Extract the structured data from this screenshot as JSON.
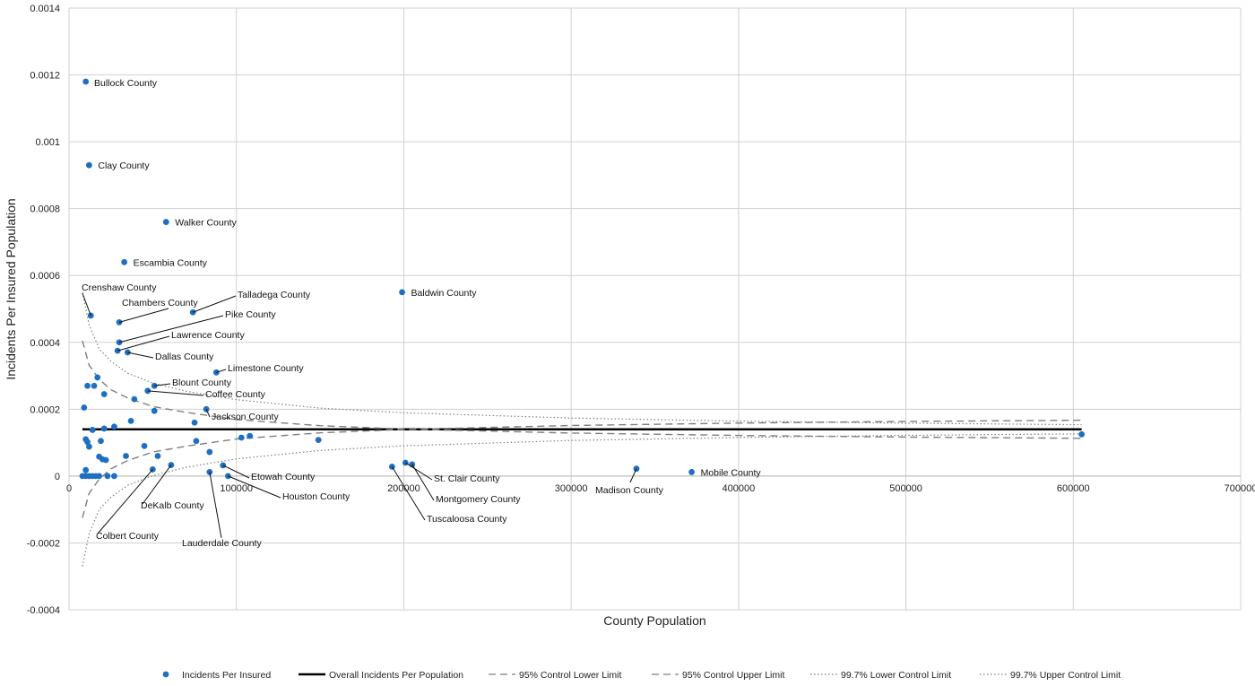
{
  "chart_data": {
    "type": "scatter",
    "xlabel": "County Population",
    "ylabel": "Incidents Per Insured Population",
    "xlim": [
      0,
      700000
    ],
    "ylim": [
      -0.0004,
      0.0014
    ],
    "x_ticks": [
      0,
      100000,
      200000,
      300000,
      400000,
      500000,
      600000,
      700000
    ],
    "x_tick_labels": [
      "0",
      "100000",
      "200000",
      "300000",
      "400000",
      "500000",
      "600000",
      "700000"
    ],
    "y_ticks": [
      -0.0004,
      -0.0002,
      0,
      0.0002,
      0.0004,
      0.0006,
      0.0008,
      0.001,
      0.0012,
      0.0014
    ],
    "y_tick_labels": [
      "-0.0004",
      "-0.0002",
      "0",
      "0.0002",
      "0.0004",
      "0.0006",
      "0.0008",
      "0.001",
      "0.0012",
      "0.0014"
    ],
    "grid": true,
    "legend_position": "bottom",
    "colors": {
      "points": "#1f6fc1",
      "overall": "#000000",
      "limits": "#7f7f7f",
      "grid": "#d0d0d0"
    },
    "series": [
      {
        "name": "Incidents Per Insured",
        "style": "marker",
        "points": [
          {
            "x": 10000,
            "y": 1.8e-05,
            "label": "Bullock County"
          },
          {
            "x": 12000,
            "y": 0.00093,
            "label": "Clay County"
          },
          {
            "x": 58000,
            "y": 0.00076,
            "label": "Walker County"
          },
          {
            "x": 33000,
            "y": 0.00064,
            "label": "Escambia County"
          },
          {
            "x": 199000,
            "y": 0.00055,
            "label": "Baldwin County"
          },
          {
            "x": 13000,
            "y": 0.00048,
            "label": "Crenshaw County"
          },
          {
            "x": 30000,
            "y": 0.00046,
            "label": "Chambers County"
          },
          {
            "x": 74000,
            "y": 0.00049,
            "label": "Talladega County"
          },
          {
            "x": 30000,
            "y": 0.0004,
            "label": "Pike County"
          },
          {
            "x": 29000,
            "y": 0.000375,
            "label": "Lawrence County"
          },
          {
            "x": 35000,
            "y": 0.00037,
            "label": "Dallas County"
          },
          {
            "x": 88000,
            "y": 0.00031,
            "label": "Limestone County"
          },
          {
            "x": 51000,
            "y": 0.00027,
            "label": "Blount County"
          },
          {
            "x": 47000,
            "y": 0.000255,
            "label": "Coffee County"
          },
          {
            "x": 82000,
            "y": 0.0002,
            "label": "Jackson County"
          },
          {
            "x": 92000,
            "y": 3.2e-05,
            "label": "Etowah County"
          },
          {
            "x": 95000,
            "y": 0.0,
            "label": "Houston County"
          },
          {
            "x": 61000,
            "y": 3.3e-05,
            "label": "DeKalb County"
          },
          {
            "x": 50000,
            "y": 2e-05,
            "label": "Colbert County"
          },
          {
            "x": 84000,
            "y": 1.2e-05,
            "label": "Lauderdale County"
          },
          {
            "x": 193000,
            "y": 2.8e-05,
            "label": "Tuscaloosa County"
          },
          {
            "x": 201000,
            "y": 4e-05,
            "label": "St. Clair County"
          },
          {
            "x": 205000,
            "y": 3.5e-05,
            "label": "Montgomery County"
          },
          {
            "x": 339000,
            "y": 2.2e-05,
            "label": "Madison County"
          },
          {
            "x": 372000,
            "y": 1.2e-05,
            "label": "Mobile County"
          },
          {
            "x": 10000,
            "y": 0.00118,
            "label": ""
          },
          {
            "x": 605000,
            "y": 0.000125,
            "label": ""
          },
          {
            "x": 9000,
            "y": 0.000205,
            "label": ""
          },
          {
            "x": 11000,
            "y": 0.00027,
            "label": ""
          },
          {
            "x": 15000,
            "y": 0.00027,
            "label": ""
          },
          {
            "x": 17000,
            "y": 0.000295,
            "label": ""
          },
          {
            "x": 21000,
            "y": 0.000245,
            "label": ""
          },
          {
            "x": 39000,
            "y": 0.00023,
            "label": ""
          },
          {
            "x": 51000,
            "y": 0.000195,
            "label": ""
          },
          {
            "x": 75000,
            "y": 0.00016,
            "label": ""
          },
          {
            "x": 37000,
            "y": 0.000165,
            "label": ""
          },
          {
            "x": 27000,
            "y": 0.000148,
            "label": ""
          },
          {
            "x": 21000,
            "y": 0.000142,
            "label": ""
          },
          {
            "x": 14000,
            "y": 0.000138,
            "label": ""
          },
          {
            "x": 10000,
            "y": 0.00011,
            "label": ""
          },
          {
            "x": 11000,
            "y": 0.000102,
            "label": ""
          },
          {
            "x": 12000,
            "y": 8.8e-05,
            "label": ""
          },
          {
            "x": 19000,
            "y": 0.000105,
            "label": ""
          },
          {
            "x": 45000,
            "y": 9e-05,
            "label": ""
          },
          {
            "x": 76000,
            "y": 0.000105,
            "label": ""
          },
          {
            "x": 103000,
            "y": 0.000115,
            "label": ""
          },
          {
            "x": 108000,
            "y": 0.00012,
            "label": ""
          },
          {
            "x": 149000,
            "y": 0.000108,
            "label": ""
          },
          {
            "x": 84000,
            "y": 7.2e-05,
            "label": ""
          },
          {
            "x": 34000,
            "y": 6e-05,
            "label": ""
          },
          {
            "x": 53000,
            "y": 6e-05,
            "label": ""
          },
          {
            "x": 18000,
            "y": 5.8e-05,
            "label": ""
          },
          {
            "x": 20000,
            "y": 5e-05,
            "label": ""
          },
          {
            "x": 22000,
            "y": 4.8e-05,
            "label": ""
          },
          {
            "x": 8000,
            "y": 0.0,
            "label": ""
          },
          {
            "x": 10000,
            "y": 0.0,
            "label": ""
          },
          {
            "x": 12000,
            "y": 0.0,
            "label": ""
          },
          {
            "x": 14000,
            "y": 0.0,
            "label": ""
          },
          {
            "x": 16000,
            "y": 0.0,
            "label": ""
          },
          {
            "x": 18000,
            "y": 0.0,
            "label": ""
          },
          {
            "x": 23000,
            "y": 0.0,
            "label": ""
          },
          {
            "x": 27000,
            "y": 0.0,
            "label": ""
          }
        ]
      },
      {
        "name": "Overall Incidents Per Population",
        "style": "solid",
        "x": [
          8000,
          605000
        ],
        "y": [
          0.00014,
          0.00014
        ]
      },
      {
        "name": "95% Control Lower Limit",
        "style": "dashed",
        "x": [
          8000,
          12000,
          18000,
          25000,
          35000,
          50000,
          70000,
          100000,
          150000,
          200000,
          300000,
          400000,
          500000,
          605000
        ],
        "y": [
          -0.000125,
          -5.16e-05,
          -9.6e-06,
          2.17e-05,
          4.63e-05,
          7.19e-05,
          8.94e-05,
          0.0001111,
          0.0001292,
          0.0001395,
          0.0001513,
          0.0001584,
          0.0001633,
          0.0001671
        ]
      },
      {
        "name": "95% Control Upper Limit",
        "style": "dashed",
        "x": [
          8000,
          12000,
          18000,
          25000,
          35000,
          50000,
          70000,
          100000,
          150000,
          200000,
          300000,
          400000,
          500000,
          605000
        ],
        "y": [
          0.000405,
          0.0003316,
          0.0002896,
          0.0002583,
          0.0002337,
          0.0002081,
          0.0001906,
          0.0001689,
          0.0001508,
          0.0001405,
          0.0001287,
          0.0001216,
          0.0001167,
          0.0001129
        ]
      },
      {
        "name": "99.7% Lower Control Limit",
        "style": "dotted",
        "x": [
          8000,
          12000,
          18000,
          25000,
          35000,
          50000,
          70000,
          100000,
          150000,
          200000,
          300000,
          400000,
          500000,
          605000
        ],
        "y": [
          -0.00027,
          -0.000173,
          -0.0001,
          -6.37e-05,
          -2.79e-05,
          1.5e-06,
          2.62e-05,
          5.15e-05,
          7.67e-05,
          9.07e-05,
          0.0001064,
          0.0001155,
          0.0001218,
          0.0001264
        ]
      },
      {
        "name": "99.7% Upper Control Limit",
        "style": "dotted",
        "x": [
          8000,
          12000,
          18000,
          25000,
          35000,
          50000,
          70000,
          100000,
          150000,
          200000,
          300000,
          400000,
          500000,
          605000
        ],
        "y": [
          0.00055,
          0.000453,
          0.00038,
          0.0003437,
          0.0003079,
          0.0002785,
          0.0002538,
          0.0002285,
          0.0002033,
          0.0001893,
          0.0001736,
          0.0001645,
          0.0001582,
          0.0001536
        ]
      }
    ]
  }
}
